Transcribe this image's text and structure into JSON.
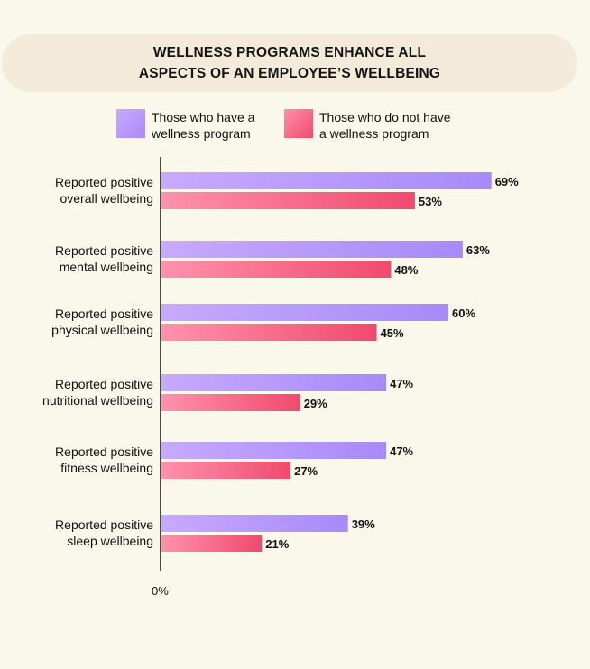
{
  "title": {
    "line1": "WELLNESS PROGRAMS ENHANCE ALL",
    "line2": "ASPECTS OF AN EMPLOYEE’S WELLBEING"
  },
  "legend": [
    {
      "line1": "Those who have a",
      "line2": "wellness program",
      "color": "#b396fb"
    },
    {
      "line1": "Those who do not have",
      "line2": "a wellness program",
      "color": "#f6638a"
    }
  ],
  "colors": {
    "purple_start": "#c7aafd",
    "purple_end": "#a78af9",
    "pink_start": "#ff92ad",
    "pink_end": "#ef4a6e",
    "axis": "#111111",
    "background": "#faf7eb",
    "title_bg": "#f3ead9"
  },
  "chart_data": {
    "type": "bar",
    "orientation": "horizontal",
    "categories": [
      [
        "Reported positive",
        "overall wellbeing"
      ],
      [
        "Reported positive",
        "mental wellbeing"
      ],
      [
        "Reported positive",
        "physical wellbeing"
      ],
      [
        "Reported positive",
        "nutritional wellbeing"
      ],
      [
        "Reported positive",
        "fitness wellbeing"
      ],
      [
        "Reported positive",
        "sleep wellbeing"
      ]
    ],
    "series": [
      {
        "name": "Those who have a wellness program",
        "values": [
          69,
          63,
          60,
          47,
          47,
          39
        ]
      },
      {
        "name": "Those who do not have a wellness program",
        "values": [
          53,
          48,
          45,
          29,
          27,
          21
        ]
      }
    ],
    "value_suffix": "%",
    "x_min_label": "0%",
    "xlim": [
      0,
      100
    ],
    "grid": false,
    "legend_position": "top"
  }
}
